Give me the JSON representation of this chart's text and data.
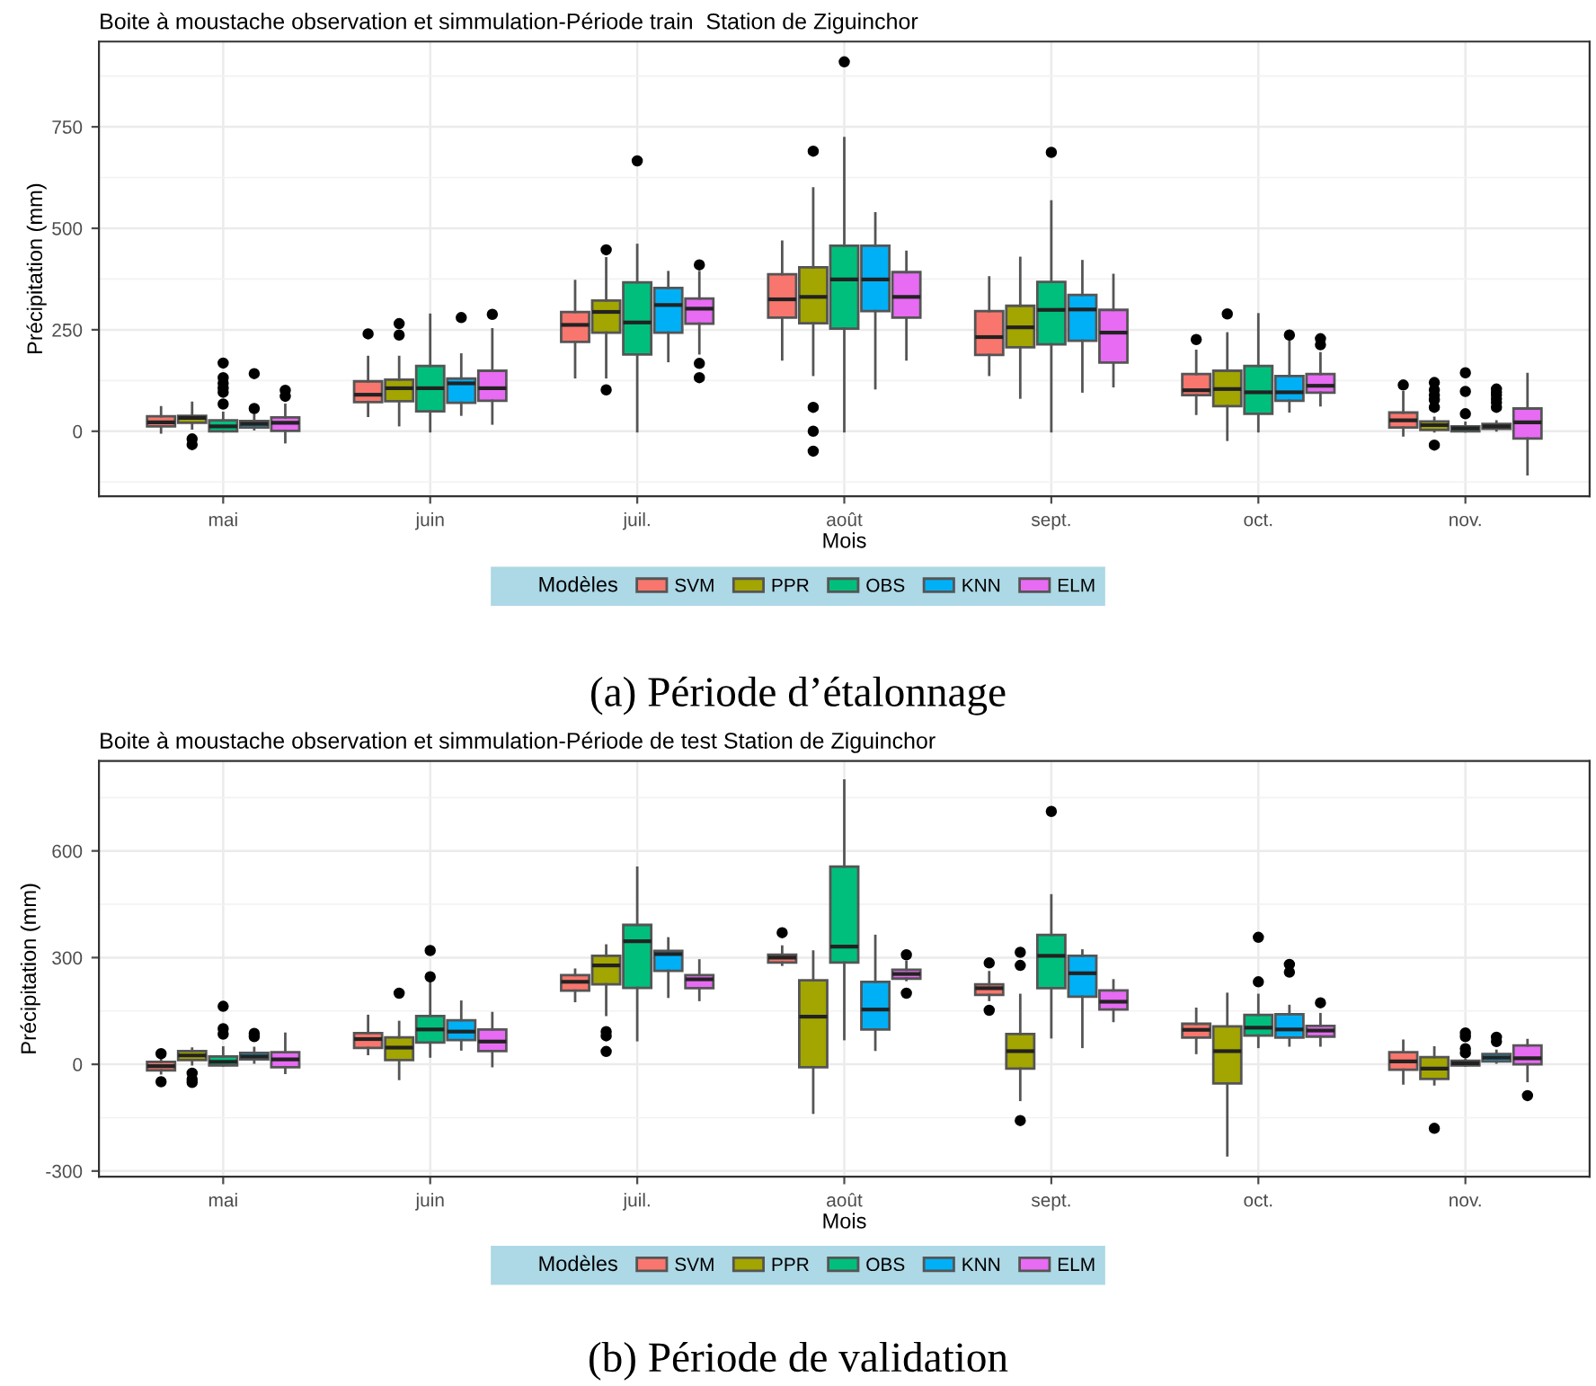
{
  "chart_data": [
    {
      "type": "box",
      "title": "Boite à moustache observation et simmulation-Période train  Station de Ziguinchor",
      "xlabel": "Mois",
      "ylabel": "Précipitation (mm)",
      "legend_title": "Modèles",
      "legend": "bottom",
      "grid": true,
      "categories": [
        "mai",
        "juin",
        "juil.",
        "août",
        "sept.",
        "oct.",
        "nov."
      ],
      "ylim": [
        -160,
        960
      ],
      "yticks": [
        {
          "value": -125,
          "label": null
        },
        0,
        {
          "value": 125,
          "label": null
        },
        250,
        {
          "value": 375,
          "label": null
        },
        500,
        {
          "value": 625,
          "label": null
        },
        750,
        {
          "value": 875,
          "label": null
        }
      ],
      "series": [
        {
          "name": "SVM",
          "color": "#f8766d",
          "boxes": [
            {
              "low": -3,
              "q1": 12,
              "median": 22,
              "q3": 37,
              "high": 59
            },
            {
              "low": 38,
              "q1": 72,
              "median": 90,
              "q3": 123,
              "high": 183,
              "outliers": [
                240
              ]
            },
            {
              "low": 133,
              "q1": 220,
              "median": 262,
              "q3": 294,
              "high": 370
            },
            {
              "low": 177,
              "q1": 280,
              "median": 325,
              "q3": 387,
              "high": 467
            },
            {
              "low": 139,
              "q1": 188,
              "median": 232,
              "q3": 296,
              "high": 379
            },
            {
              "low": 43,
              "q1": 89,
              "median": 101,
              "q3": 141,
              "high": 198,
              "outliers": [
                226
              ]
            },
            {
              "low": -10,
              "q1": 9,
              "median": 27,
              "q3": 46,
              "high": 96,
              "outliers": [
                114
              ]
            }
          ]
        },
        {
          "name": "PPR",
          "color": "#a3a500",
          "boxes": [
            {
              "low": 7,
              "q1": 21,
              "median": 33,
              "q3": 38,
              "high": 70,
              "outliers": [
                -19,
                -33
              ]
            },
            {
              "low": 15,
              "q1": 74,
              "median": 106,
              "q3": 127,
              "high": 183,
              "outliers": [
                237,
                265
              ]
            },
            {
              "low": 133,
              "q1": 243,
              "median": 294,
              "q3": 322,
              "high": 426,
              "outliers": [
                447,
                102
              ]
            },
            {
              "low": 139,
              "q1": 266,
              "median": 331,
              "q3": 404,
              "high": 598,
              "outliers": [
                690,
                59,
                0,
                -49
              ]
            },
            {
              "low": 83,
              "q1": 207,
              "median": 256,
              "q3": 309,
              "high": 427
            },
            {
              "low": -21,
              "q1": 62,
              "median": 104,
              "q3": 149,
              "high": 241,
              "outliers": [
                289
              ]
            },
            {
              "low": 0,
              "q1": 3,
              "median": 15,
              "q3": 24,
              "high": 33,
              "outliers": [
                120,
                102,
                89,
                77,
                59,
                -34
              ]
            }
          ]
        },
        {
          "name": "OBS",
          "color": "#00bf7d",
          "boxes": [
            {
              "low": 0,
              "q1": 0,
              "median": 12,
              "q3": 27,
              "high": 45,
              "outliers": [
                168,
                132,
                118,
                106,
                96,
                67
              ]
            },
            {
              "low": 0,
              "q1": 49,
              "median": 106,
              "q3": 161,
              "high": 287
            },
            {
              "low": 0,
              "q1": 189,
              "median": 268,
              "q3": 367,
              "high": 459,
              "outliers": [
                666
              ]
            },
            {
              "low": 0,
              "q1": 253,
              "median": 374,
              "q3": 457,
              "high": 722,
              "outliers": [
                910
              ]
            },
            {
              "low": 0,
              "q1": 214,
              "median": 299,
              "q3": 368,
              "high": 566,
              "outliers": [
                687
              ]
            },
            {
              "low": 0,
              "q1": 43,
              "median": 96,
              "q3": 161,
              "high": 288
            },
            {
              "low": 0,
              "q1": 0,
              "median": 7,
              "q3": 12,
              "high": 21,
              "outliers": [
                144,
                98,
                43
              ]
            }
          ]
        },
        {
          "name": "KNN",
          "color": "#00b0f6",
          "boxes": [
            {
              "low": 5,
              "q1": 9,
              "median": 18,
              "q3": 25,
              "high": 40,
              "outliers": [
                142,
                56
              ]
            },
            {
              "low": 41,
              "q1": 70,
              "median": 118,
              "q3": 130,
              "high": 189,
              "outliers": [
                280
              ]
            },
            {
              "low": 173,
              "q1": 243,
              "median": 311,
              "q3": 353,
              "high": 392
            },
            {
              "low": 106,
              "q1": 296,
              "median": 374,
              "q3": 457,
              "high": 537
            },
            {
              "low": 98,
              "q1": 223,
              "median": 300,
              "q3": 336,
              "high": 419
            },
            {
              "low": 49,
              "q1": 75,
              "median": 96,
              "q3": 136,
              "high": 222,
              "outliers": [
                237
              ]
            },
            {
              "low": 2,
              "q1": 6,
              "median": 12,
              "q3": 18,
              "high": 24,
              "outliers": [
                104,
                96,
                89,
                80,
                71,
                59
              ]
            }
          ]
        },
        {
          "name": "ELM",
          "color": "#e76bf3",
          "boxes": [
            {
              "low": -27,
              "q1": 1,
              "median": 21,
              "q3": 34,
              "high": 65,
              "outliers": [
                101,
                86
              ]
            },
            {
              "low": 19,
              "q1": 75,
              "median": 106,
              "q3": 149,
              "high": 251,
              "outliers": [
                288
              ]
            },
            {
              "low": 192,
              "q1": 265,
              "median": 302,
              "q3": 327,
              "high": 392,
              "outliers": [
                410,
                167,
                132
              ]
            },
            {
              "low": 177,
              "q1": 280,
              "median": 331,
              "q3": 392,
              "high": 442
            },
            {
              "low": 111,
              "q1": 169,
              "median": 243,
              "q3": 299,
              "high": 385
            },
            {
              "low": 64,
              "q1": 95,
              "median": 112,
              "q3": 141,
              "high": 192,
              "outliers": [
                228,
                213
              ]
            },
            {
              "low": -106,
              "q1": -18,
              "median": 22,
              "q3": 56,
              "high": 141
            }
          ]
        }
      ],
      "annotations": [
        "(a) Période d’étalonnage"
      ]
    },
    {
      "type": "box",
      "title": "Boite à moustache observation et simmulation-Période de test Station de Ziguinchor",
      "xlabel": "Mois",
      "ylabel": "Précipitation (mm)",
      "legend_title": "Modèles",
      "legend": "bottom",
      "grid": true,
      "categories": [
        "mai",
        "juin",
        "juil.",
        "août",
        "sept.",
        "oct.",
        "nov."
      ],
      "ylim": [
        -316,
        853
      ],
      "yticks": [
        -300,
        {
          "value": -150,
          "label": null
        },
        0,
        {
          "value": 150,
          "label": null
        },
        300,
        {
          "value": 450,
          "label": null
        },
        600,
        {
          "value": 750,
          "label": null
        }
      ],
      "series": [
        {
          "name": "SVM",
          "color": "#f8766d",
          "boxes": [
            {
              "low": -25,
              "q1": -17,
              "median": -5,
              "q3": 7,
              "high": 25,
              "outliers": [
                30,
                -49
              ]
            },
            {
              "low": 29,
              "q1": 46,
              "median": 71,
              "q3": 88,
              "high": 136
            },
            {
              "low": 178,
              "q1": 207,
              "median": 232,
              "q3": 251,
              "high": 266
            },
            {
              "low": 280,
              "q1": 286,
              "median": 300,
              "q3": 308,
              "high": 331,
              "outliers": [
                370
              ]
            },
            {
              "low": 181,
              "q1": 195,
              "median": 214,
              "q3": 225,
              "high": 259,
              "outliers": [
                285,
                152
              ]
            },
            {
              "low": 32,
              "q1": 75,
              "median": 97,
              "q3": 114,
              "high": 156
            },
            {
              "low": -54,
              "q1": -15,
              "median": 8,
              "q3": 34,
              "high": 66
            }
          ]
        },
        {
          "name": "PPR",
          "color": "#a3a500",
          "boxes": [
            {
              "low": 0,
              "q1": 12,
              "median": 25,
              "q3": 37,
              "high": 44,
              "outliers": [
                -25,
                -42,
                -51
              ]
            },
            {
              "low": -41,
              "q1": 12,
              "median": 47,
              "q3": 76,
              "high": 119,
              "outliers": [
                200
              ]
            },
            {
              "low": 139,
              "q1": 225,
              "median": 278,
              "q3": 305,
              "high": 334,
              "outliers": [
                92,
                80,
                36
              ]
            },
            {
              "low": -136,
              "q1": -8,
              "median": 134,
              "q3": 236,
              "high": 317
            },
            {
              "low": -100,
              "q1": -12,
              "median": 37,
              "q3": 85,
              "high": 195,
              "outliers": [
                315,
                278,
                -158
              ]
            },
            {
              "low": -256,
              "q1": -54,
              "median": 37,
              "q3": 107,
              "high": 198
            },
            {
              "low": -56,
              "q1": -41,
              "median": -12,
              "q3": 20,
              "high": 47,
              "outliers": [
                -180
              ]
            }
          ]
        },
        {
          "name": "OBS",
          "color": "#00bf7d",
          "boxes": [
            {
              "low": -3,
              "q1": -3,
              "median": 7,
              "q3": 22,
              "high": 47,
              "outliers": [
                163,
                100,
                85
              ]
            },
            {
              "low": 22,
              "q1": 61,
              "median": 98,
              "q3": 136,
              "high": 229,
              "outliers": [
                320,
                246
              ]
            },
            {
              "low": 68,
              "q1": 215,
              "median": 346,
              "q3": 392,
              "high": 553
            },
            {
              "low": 71,
              "q1": 286,
              "median": 331,
              "q3": 556,
              "high": 798
            },
            {
              "low": 76,
              "q1": 214,
              "median": 305,
              "q3": 364,
              "high": 475,
              "outliers": [
                711
              ]
            },
            {
              "low": 49,
              "q1": 81,
              "median": 103,
              "q3": 139,
              "high": 195,
              "outliers": [
                357,
                232
              ]
            },
            {
              "low": -3,
              "q1": -3,
              "median": 3,
              "q3": 10,
              "high": 12,
              "outliers": [
                88,
                78,
                44,
                32
              ]
            }
          ]
        },
        {
          "name": "KNN",
          "color": "#00b0f6",
          "boxes": [
            {
              "low": 5,
              "q1": 14,
              "median": 22,
              "q3": 32,
              "high": 46,
              "outliers": [
                87,
                78
              ]
            },
            {
              "low": 42,
              "q1": 68,
              "median": 92,
              "q3": 124,
              "high": 176
            },
            {
              "low": 190,
              "q1": 263,
              "median": 310,
              "q3": 319,
              "high": 354
            },
            {
              "low": 41,
              "q1": 98,
              "median": 154,
              "q3": 232,
              "high": 361
            },
            {
              "low": 49,
              "q1": 190,
              "median": 256,
              "q3": 305,
              "high": 320
            },
            {
              "low": 53,
              "q1": 75,
              "median": 98,
              "q3": 141,
              "high": 164,
              "outliers": [
                281,
                259
              ]
            },
            {
              "low": 5,
              "q1": 8,
              "median": 19,
              "q3": 29,
              "high": 38,
              "outliers": [
                76,
                64
              ]
            }
          ]
        },
        {
          "name": "ELM",
          "color": "#e76bf3",
          "boxes": [
            {
              "low": -24,
              "q1": -8,
              "median": 14,
              "q3": 34,
              "high": 86
            },
            {
              "low": -5,
              "q1": 37,
              "median": 64,
              "q3": 98,
              "high": 144
            },
            {
              "low": 181,
              "q1": 214,
              "median": 239,
              "q3": 251,
              "high": 292
            },
            {
              "low": 237,
              "q1": 241,
              "median": 254,
              "q3": 266,
              "high": 288,
              "outliers": [
                308,
                200
              ]
            },
            {
              "low": 122,
              "q1": 154,
              "median": 176,
              "q3": 208,
              "high": 236
            },
            {
              "low": 53,
              "q1": 78,
              "median": 95,
              "q3": 108,
              "high": 141,
              "outliers": [
                173
              ]
            },
            {
              "low": -47,
              "q1": 0,
              "median": 17,
              "q3": 53,
              "high": 68,
              "outliers": [
                -88
              ]
            }
          ]
        }
      ],
      "annotations": [
        "(b) Période de validation"
      ]
    }
  ]
}
